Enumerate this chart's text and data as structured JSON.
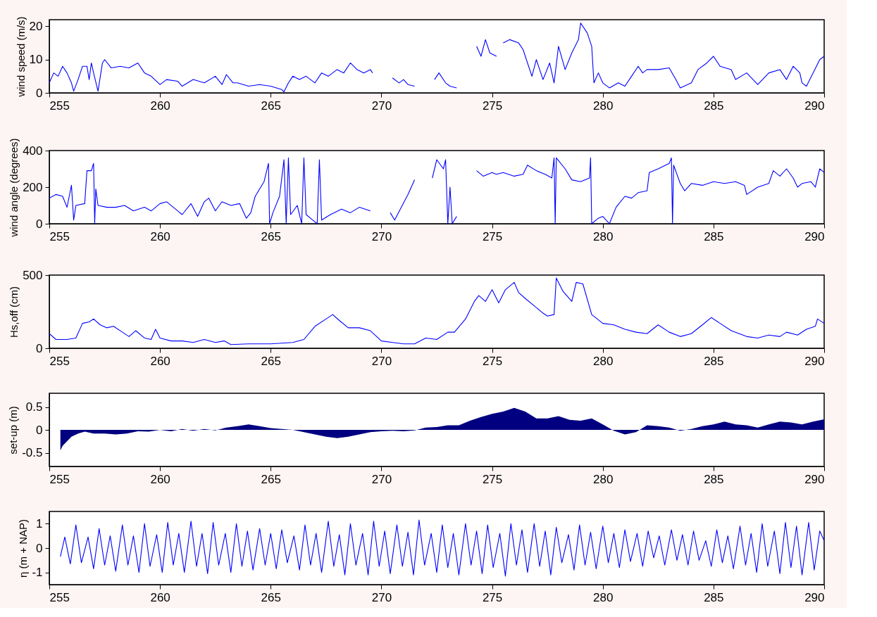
{
  "chart_data": [
    {
      "type": "line",
      "ylabel": "wind speed (m/s)",
      "xlim": [
        255,
        290
      ],
      "xticks": [
        255,
        260,
        265,
        270,
        275,
        280,
        285,
        290
      ],
      "ylim": [
        0,
        22
      ],
      "yticks": [
        0,
        10,
        20
      ],
      "x": [
        255.0,
        255.2,
        255.4,
        255.6,
        255.8,
        256.0,
        256.1,
        256.3,
        256.5,
        256.7,
        256.8,
        256.9,
        257.0,
        257.2,
        257.4,
        257.5,
        257.8,
        258.2,
        258.6,
        259.0,
        259.3,
        259.6,
        260.0,
        260.3,
        260.8,
        261.0,
        261.5,
        262.0,
        262.5,
        262.8,
        263.0,
        263.3,
        263.5,
        264.0,
        264.5,
        265.0,
        265.5,
        265.6,
        265.8,
        266.0,
        266.3,
        266.6,
        267.0,
        267.3,
        267.6,
        268.0,
        268.3,
        268.6,
        268.9,
        269.2,
        269.5,
        269.6,
        270.0,
        270.5,
        270.8,
        271.0,
        271.2,
        271.5,
        272.0,
        272.4,
        272.6,
        272.9,
        273.1,
        273.4,
        274.0,
        274.3,
        274.5,
        274.7,
        274.9,
        275.2,
        275.3,
        275.5,
        275.8,
        276.2,
        276.4,
        276.6,
        276.8,
        277.0,
        277.3,
        277.6,
        277.8,
        278.0,
        278.3,
        278.6,
        278.9,
        279.0,
        279.3,
        279.5,
        279.6,
        279.8,
        280.0,
        280.3,
        280.7,
        281.0,
        281.3,
        281.6,
        281.8,
        282.0,
        282.5,
        283.0,
        283.3,
        283.5,
        284.0,
        284.3,
        284.7,
        285.0,
        285.3,
        285.8,
        286.0,
        286.5,
        287.0,
        287.5,
        288.0,
        288.3,
        288.6,
        288.9,
        289.0,
        289.2,
        289.5,
        289.8,
        290.0
      ],
      "series": [
        {
          "color": "#0000ff",
          "values": [
            3,
            6,
            5,
            8,
            6,
            3,
            0.5,
            4,
            8,
            8,
            4,
            9,
            6,
            0.5,
            9,
            10,
            7.5,
            8,
            7.5,
            9,
            6,
            5,
            2.5,
            4,
            3.5,
            2,
            4,
            3,
            5,
            2.5,
            5.5,
            3,
            3,
            2,
            2.5,
            2,
            1,
            0.3,
            3,
            5,
            4,
            5,
            3,
            6,
            5,
            7,
            6,
            9,
            7,
            6,
            7,
            6,
            null,
            4.5,
            3,
            4,
            2.5,
            2,
            null,
            4,
            6,
            3,
            2,
            1.5,
            null,
            14,
            11,
            16,
            12,
            11,
            null,
            15,
            16,
            15,
            13,
            9,
            5,
            10,
            4,
            9,
            3,
            14,
            7,
            12,
            16,
            21,
            18,
            14,
            3,
            6,
            3,
            1.5,
            3,
            2,
            5,
            8,
            6,
            7,
            7,
            7.5,
            4,
            1.5,
            3,
            7,
            9,
            11,
            8,
            7,
            4,
            6,
            2.5,
            6,
            7,
            4,
            8,
            6,
            3,
            2,
            6,
            10,
            11
          ]
        }
      ]
    },
    {
      "type": "line",
      "ylabel": "wind angle (degrees)",
      "xlim": [
        255,
        290
      ],
      "xticks": [
        255,
        260,
        265,
        270,
        275,
        280,
        285,
        290
      ],
      "ylim": [
        0,
        400
      ],
      "yticks": [
        0,
        200,
        400
      ],
      "x": [
        255.0,
        255.3,
        255.6,
        255.8,
        255.9,
        256.0,
        256.1,
        256.2,
        256.6,
        256.7,
        256.9,
        257.0,
        257.05,
        257.1,
        257.2,
        257.6,
        258.0,
        258.4,
        258.8,
        259.3,
        259.6,
        260.0,
        260.3,
        260.7,
        261.0,
        261.4,
        261.7,
        262.0,
        262.2,
        262.5,
        262.8,
        263.2,
        263.6,
        263.9,
        264.1,
        264.3,
        264.7,
        264.9,
        264.95,
        265.1,
        265.4,
        265.6,
        265.7,
        265.8,
        265.9,
        266.2,
        266.4,
        266.5,
        266.6,
        266.9,
        267.1,
        267.2,
        267.3,
        267.7,
        268.2,
        268.6,
        269.0,
        269.5,
        270.0,
        270.4,
        270.6,
        270.9,
        271.2,
        271.5,
        272.0,
        272.3,
        272.5,
        272.8,
        272.9,
        273.0,
        273.1,
        273.2,
        273.4,
        274.0,
        274.3,
        274.6,
        275.0,
        275.2,
        275.5,
        276.0,
        276.4,
        276.6,
        277.0,
        277.4,
        277.7,
        277.8,
        277.85,
        277.9,
        278.3,
        278.6,
        279.0,
        279.4,
        279.45,
        279.5,
        279.8,
        280.0,
        280.3,
        280.6,
        281.0,
        281.3,
        281.6,
        282.0,
        282.1,
        282.5,
        283.0,
        283.1,
        283.15,
        283.2,
        283.5,
        283.7,
        284.0,
        284.5,
        285.0,
        285.5,
        286.0,
        286.4,
        286.5,
        287.0,
        287.5,
        287.7,
        288.0,
        288.3,
        288.6,
        288.8,
        289.0,
        289.4,
        289.6,
        289.8,
        290.0
      ],
      "series": [
        {
          "color": "#0000ff",
          "values": [
            140,
            160,
            150,
            90,
            150,
            210,
            20,
            100,
            110,
            290,
            290,
            330,
            0,
            190,
            100,
            90,
            90,
            100,
            70,
            90,
            70,
            110,
            120,
            80,
            50,
            110,
            40,
            120,
            140,
            70,
            120,
            100,
            110,
            30,
            60,
            150,
            230,
            330,
            0,
            60,
            150,
            350,
            0,
            360,
            50,
            100,
            0,
            360,
            50,
            20,
            0,
            350,
            20,
            50,
            80,
            60,
            90,
            70,
            null,
            60,
            20,
            90,
            160,
            240,
            null,
            250,
            350,
            300,
            350,
            0,
            200,
            0,
            40,
            null,
            290,
            260,
            280,
            270,
            280,
            260,
            270,
            320,
            290,
            270,
            250,
            360,
            0,
            360,
            300,
            240,
            230,
            250,
            360,
            0,
            30,
            40,
            0,
            90,
            150,
            140,
            170,
            180,
            280,
            300,
            330,
            360,
            0,
            320,
            220,
            180,
            220,
            210,
            230,
            220,
            230,
            210,
            160,
            200,
            220,
            290,
            260,
            300,
            250,
            200,
            220,
            230,
            200,
            300,
            280
          ]
        }
      ]
    },
    {
      "type": "line",
      "ylabel": "Hs,off (cm)",
      "xlim": [
        255,
        290
      ],
      "xticks": [
        255,
        260,
        265,
        270,
        275,
        280,
        285,
        290
      ],
      "ylim": [
        0,
        500
      ],
      "yticks": [
        0,
        500
      ],
      "x": [
        255.0,
        255.3,
        255.8,
        256.2,
        256.5,
        256.8,
        257.0,
        257.3,
        257.6,
        257.9,
        258.3,
        258.6,
        258.9,
        259.3,
        259.6,
        259.8,
        260.0,
        260.5,
        261.0,
        261.5,
        262.0,
        262.5,
        262.9,
        263.2,
        264.0,
        265.0,
        266.0,
        266.5,
        267.0,
        267.5,
        267.8,
        268.1,
        268.5,
        269.0,
        269.5,
        270.0,
        270.5,
        271.0,
        271.5,
        272.0,
        272.5,
        273.0,
        273.3,
        273.8,
        274.2,
        274.4,
        274.7,
        275.0,
        275.3,
        275.6,
        276.0,
        276.2,
        276.5,
        276.9,
        277.3,
        277.5,
        277.8,
        277.9,
        278.2,
        278.6,
        278.8,
        279.1,
        279.5,
        280.0,
        280.5,
        281.0,
        281.5,
        282.0,
        282.5,
        283.0,
        283.5,
        284.0,
        284.5,
        284.9,
        285.3,
        285.8,
        286.5,
        287.0,
        287.5,
        288.0,
        288.3,
        288.8,
        289.2,
        289.6,
        289.7,
        290.0
      ],
      "series": [
        {
          "color": "#0000ff",
          "values": [
            100,
            60,
            60,
            70,
            170,
            180,
            200,
            160,
            140,
            150,
            110,
            80,
            120,
            70,
            60,
            130,
            70,
            50,
            50,
            40,
            60,
            40,
            50,
            25,
            30,
            30,
            40,
            60,
            150,
            200,
            230,
            190,
            140,
            140,
            120,
            50,
            40,
            30,
            30,
            70,
            60,
            110,
            110,
            200,
            320,
            360,
            320,
            400,
            310,
            400,
            450,
            380,
            340,
            290,
            240,
            220,
            230,
            480,
            390,
            320,
            450,
            440,
            230,
            170,
            160,
            130,
            110,
            100,
            160,
            110,
            80,
            100,
            160,
            210,
            170,
            120,
            80,
            70,
            90,
            80,
            110,
            90,
            130,
            150,
            200,
            170
          ]
        }
      ]
    },
    {
      "type": "area",
      "ylabel": "set-up (m)",
      "xlim": [
        255,
        290
      ],
      "xticks": [
        255,
        260,
        265,
        270,
        275,
        280,
        285,
        290
      ],
      "ylim": [
        -0.8,
        0.8
      ],
      "yticks": [
        -0.5,
        0,
        0.5
      ],
      "x": [
        255.5,
        255.6,
        255.8,
        256.0,
        256.3,
        256.6,
        257.0,
        257.5,
        258.0,
        258.5,
        259.0,
        259.5,
        260.0,
        260.5,
        261.0,
        261.5,
        262.0,
        262.5,
        263.0,
        263.5,
        264.0,
        264.5,
        265.0,
        265.5,
        266.0,
        266.5,
        267.0,
        267.5,
        268.0,
        268.5,
        269.0,
        269.5,
        270.0,
        270.5,
        271.0,
        271.5,
        272.0,
        272.5,
        273.0,
        273.5,
        274.0,
        274.5,
        275.0,
        275.5,
        276.0,
        276.5,
        277.0,
        277.5,
        278.0,
        278.5,
        279.0,
        279.5,
        280.0,
        280.5,
        281.0,
        281.5,
        282.0,
        282.5,
        283.0,
        283.5,
        284.0,
        284.5,
        285.0,
        285.5,
        286.0,
        286.5,
        287.0,
        287.5,
        288.0,
        288.5,
        289.0,
        289.5,
        290.0
      ],
      "series": [
        {
          "color": "#000080",
          "values": [
            -0.45,
            -0.35,
            -0.25,
            -0.15,
            -0.08,
            -0.04,
            -0.08,
            -0.08,
            -0.1,
            -0.08,
            -0.03,
            -0.04,
            0,
            -0.03,
            0.02,
            -0.02,
            0.02,
            -0.01,
            0.05,
            0.08,
            0.12,
            0.08,
            0.04,
            0.02,
            0,
            -0.05,
            -0.1,
            -0.15,
            -0.18,
            -0.15,
            -0.1,
            -0.05,
            -0.03,
            -0.02,
            -0.03,
            -0.01,
            0.05,
            0.06,
            0.1,
            0.1,
            0.2,
            0.28,
            0.35,
            0.4,
            0.48,
            0.4,
            0.25,
            0.25,
            0.3,
            0.22,
            0.2,
            0.25,
            0.12,
            -0.02,
            -0.1,
            -0.05,
            0.1,
            0.08,
            0.05,
            -0.02,
            0.02,
            0.08,
            0.12,
            0.18,
            0.12,
            0.1,
            0.05,
            0.12,
            0.18,
            0.16,
            0.12,
            0.18,
            0.23
          ]
        }
      ]
    },
    {
      "type": "line",
      "ylabel": "η (m + NAP)",
      "xlim": [
        255,
        290
      ],
      "xticks": [
        255,
        260,
        265,
        270,
        275,
        280,
        285,
        290
      ],
      "ylim": [
        -1.5,
        1.5
      ],
      "yticks": [
        -1,
        0,
        1
      ],
      "x": [
        255.5,
        255.7,
        255.95,
        256.2,
        256.45,
        256.75,
        257.0,
        257.25,
        257.5,
        257.75,
        258.0,
        258.3,
        258.55,
        258.8,
        259.05,
        259.3,
        259.55,
        259.85,
        260.1,
        260.35,
        260.6,
        260.85,
        261.1,
        261.4,
        261.65,
        261.9,
        262.15,
        262.4,
        262.65,
        262.95,
        263.2,
        263.45,
        263.7,
        263.95,
        264.2,
        264.5,
        264.75,
        265.0,
        265.25,
        265.5,
        265.75,
        266.05,
        266.3,
        266.55,
        266.8,
        267.05,
        267.3,
        267.6,
        267.85,
        268.1,
        268.35,
        268.6,
        268.85,
        269.15,
        269.4,
        269.65,
        269.9,
        270.15,
        270.4,
        270.7,
        270.95,
        271.2,
        271.45,
        271.7,
        271.95,
        272.25,
        272.5,
        272.75,
        273.0,
        273.25,
        273.5,
        273.8,
        274.05,
        274.3,
        274.55,
        274.8,
        275.05,
        275.35,
        275.6,
        275.85,
        276.1,
        276.35,
        276.6,
        276.9,
        277.15,
        277.4,
        277.65,
        277.9,
        278.15,
        278.45,
        278.7,
        278.95,
        279.2,
        279.45,
        279.7,
        280.0,
        280.25,
        280.5,
        280.75,
        281.0,
        281.25,
        281.55,
        281.8,
        282.05,
        282.3,
        282.55,
        282.8,
        283.1,
        283.35,
        283.6,
        283.85,
        284.1,
        284.35,
        284.65,
        284.9,
        285.15,
        285.4,
        285.65,
        285.9,
        286.2,
        286.45,
        286.7,
        286.95,
        287.2,
        287.45,
        287.75,
        288.0,
        288.25,
        288.5,
        288.75,
        289.0,
        289.3,
        289.55,
        289.8,
        290.0
      ],
      "series": [
        {
          "color": "#0000ff",
          "values": [
            -0.35,
            0.45,
            -0.65,
            0.95,
            -0.6,
            0.45,
            -0.85,
            0.8,
            -0.7,
            0.5,
            -0.95,
            0.95,
            -0.7,
            0.5,
            -1.0,
            1.0,
            -0.75,
            0.55,
            -1.0,
            1.05,
            -0.7,
            0.6,
            -1.0,
            1.1,
            -0.75,
            0.6,
            -1.05,
            1.05,
            -0.7,
            0.6,
            -1.0,
            1.0,
            -0.75,
            0.7,
            -0.9,
            0.8,
            -0.7,
            0.6,
            -0.85,
            0.75,
            -0.6,
            0.5,
            -0.9,
            0.95,
            -0.7,
            0.6,
            -1.0,
            1.1,
            -0.75,
            0.55,
            -1.1,
            1.0,
            -0.7,
            0.6,
            -1.1,
            1.1,
            -0.75,
            0.7,
            -1.05,
            0.95,
            -0.75,
            0.65,
            -1.1,
            1.15,
            -0.7,
            0.6,
            -1.0,
            0.95,
            -0.8,
            0.6,
            -1.1,
            1.0,
            -0.7,
            0.7,
            -1.05,
            0.95,
            -0.8,
            0.6,
            -1.15,
            1.0,
            -0.7,
            0.75,
            -1.0,
            1.0,
            -0.75,
            0.7,
            -1.1,
            0.85,
            -0.6,
            0.55,
            -0.9,
            0.95,
            -0.7,
            0.65,
            -0.85,
            0.9,
            -0.6,
            0.6,
            -0.8,
            0.75,
            -0.55,
            0.6,
            -0.75,
            0.7,
            -0.4,
            0.5,
            -0.7,
            0.75,
            -0.5,
            0.55,
            -0.7,
            0.7,
            -0.5,
            0.3,
            -0.75,
            0.75,
            -0.6,
            0.5,
            -0.85,
            0.9,
            -0.7,
            0.6,
            -1.0,
            1.0,
            -0.75,
            0.7,
            -1.05,
            1.05,
            -0.8,
            0.9,
            -1.1,
            1.05,
            -0.9,
            0.7,
            0.3
          ]
        }
      ]
    }
  ]
}
